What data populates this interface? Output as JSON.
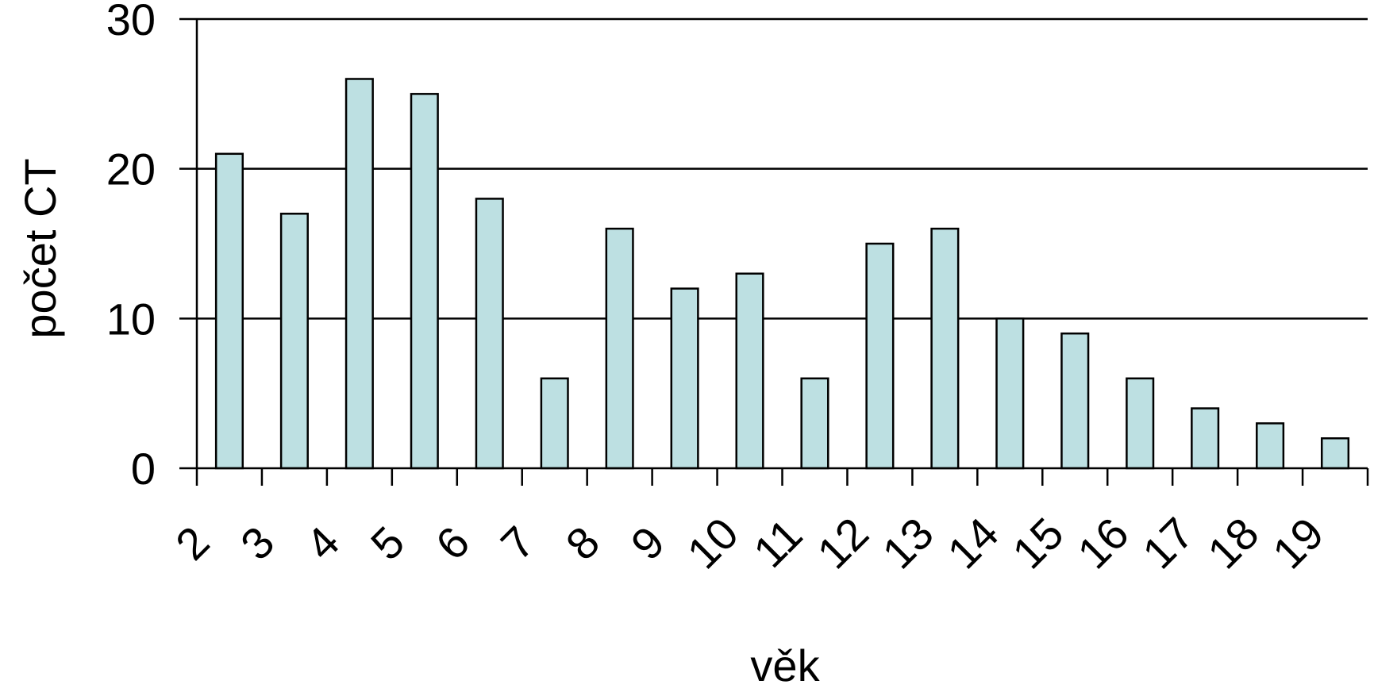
{
  "chart_data": {
    "type": "bar",
    "title": "",
    "xlabel": "věk",
    "ylabel": "počet CT",
    "ylim": [
      0,
      30
    ],
    "yticks": [
      "0",
      "10",
      "20",
      "30"
    ],
    "categories": [
      "2",
      "3",
      "4",
      "5",
      "6",
      "7",
      "8",
      "9",
      "10",
      "11",
      "12",
      "13",
      "14",
      "15",
      "16",
      "17",
      "18",
      "19"
    ],
    "values": [
      21,
      17,
      26,
      25,
      18,
      6,
      16,
      12,
      13,
      6,
      15,
      16,
      10,
      9,
      6,
      4,
      3,
      2
    ],
    "grid": true,
    "bar_color": "#bde0e2",
    "bar_edge_color": "#000000"
  }
}
